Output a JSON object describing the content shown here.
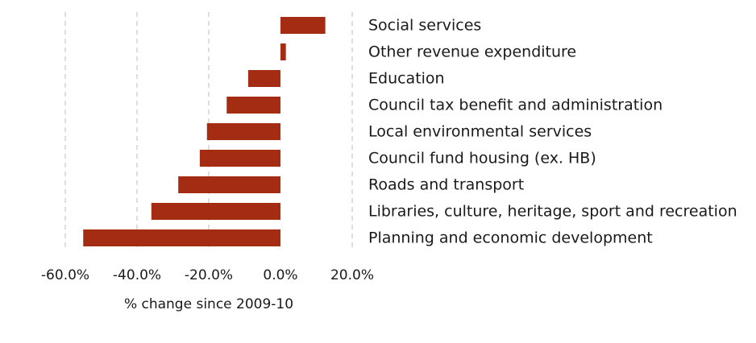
{
  "chart_data": {
    "type": "bar",
    "orientation": "horizontal",
    "categories": [
      "Social services",
      "Other revenue expenditure",
      "Education",
      "Council tax benefit and administration",
      "Local environmental services",
      "Council fund housing (ex. HB)",
      "Roads and transport",
      "Libraries, culture, heritage, sport and recreation",
      "Planning and economic development"
    ],
    "values": [
      12.5,
      1.5,
      -9.0,
      -15.0,
      -20.5,
      -22.5,
      -28.5,
      -36.0,
      -55.0
    ],
    "xlabel": "% change since 2009-10",
    "ylabel": "",
    "xlim": [
      -60,
      20
    ],
    "xticks": [
      -60,
      -40,
      -20,
      0,
      20
    ],
    "xtick_labels": [
      "-60.0%",
      "-40.0%",
      "-20.0%",
      "0.0%",
      "20.0%"
    ],
    "grid": "vertical dashed",
    "legend": "none",
    "bar_color": "#a32c12"
  }
}
